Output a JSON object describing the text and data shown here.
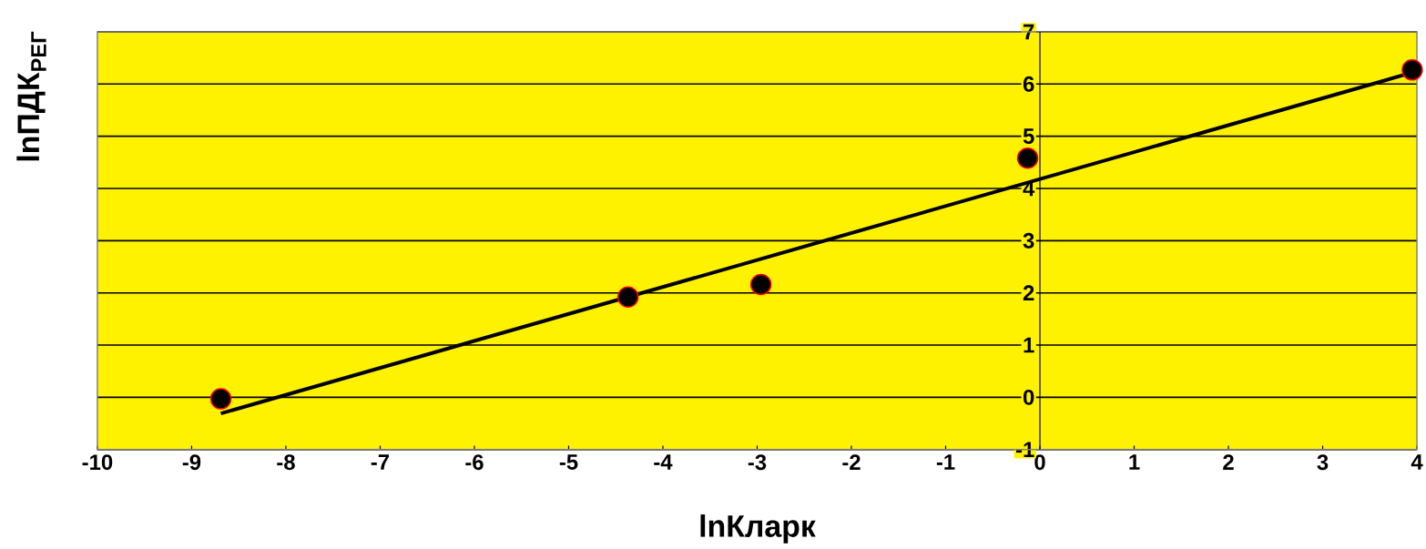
{
  "chart_data": {
    "type": "scatter",
    "xlabel": "lnКларк",
    "ylabel": "lnПДК$_{РЕГ}$",
    "series": [
      {
        "marker": "circle",
        "color": "#000000",
        "x": [
          -8.69,
          -4.37,
          -2.96,
          -0.13,
          3.95
        ],
        "values": [
          -0.03,
          1.92,
          2.16,
          4.58,
          6.27
        ]
      },
      {
        "type": "line",
        "marker": "none",
        "color": "#000000",
        "x": [
          -8.69,
          3.95
        ],
        "values": [
          -0.31,
          6.22
        ]
      }
    ],
    "xlim": [
      -10,
      4
    ],
    "ylim": [
      -1,
      7
    ],
    "xticks": [
      -10,
      -9,
      -8,
      -7,
      -6,
      -5,
      -4,
      -3,
      -2,
      -1,
      0,
      1,
      2,
      3,
      4
    ],
    "yticks": [
      -1,
      0,
      1,
      2,
      3,
      4,
      5,
      6,
      7
    ],
    "grid": "y"
  }
}
